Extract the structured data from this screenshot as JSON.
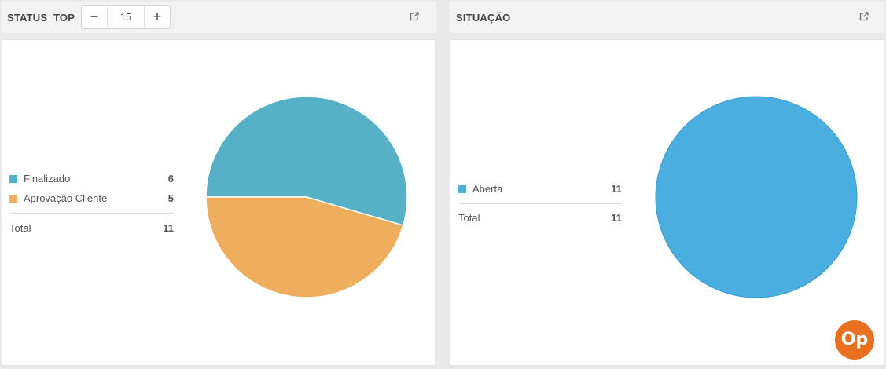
{
  "colors": {
    "finalizado": "#56b1c6",
    "aprovacao": "#eeae5e",
    "aberta": "#4aaee0"
  },
  "left_panel": {
    "title_status": "STATUS",
    "title_top": "TOP",
    "top_stepper": {
      "minus": "−",
      "value": "15",
      "plus": "+"
    },
    "expand_icon": "external-link-icon",
    "legend": {
      "items": [
        {
          "label": "Finalizado",
          "value": "6"
        },
        {
          "label": "Aprovação Cliente",
          "value": "5"
        }
      ],
      "total_label": "Total",
      "total_value": "11"
    }
  },
  "right_panel": {
    "title": "SITUAÇÃO",
    "expand_icon": "external-link-icon",
    "legend": {
      "items": [
        {
          "label": "Aberta",
          "value": "11"
        }
      ],
      "total_label": "Total",
      "total_value": "11"
    }
  },
  "logo": {
    "text": "Op",
    "icon": "op-logo"
  },
  "chart_data": [
    {
      "type": "pie",
      "title": "STATUS",
      "categories": [
        "Finalizado",
        "Aprovação Cliente"
      ],
      "values": [
        6,
        5
      ],
      "colors": [
        "#56b1c6",
        "#eeae5e"
      ],
      "legend": "left"
    },
    {
      "type": "pie",
      "title": "SITUAÇÃO",
      "categories": [
        "Aberta"
      ],
      "values": [
        11
      ],
      "colors": [
        "#4aaee0"
      ],
      "legend": "left"
    }
  ]
}
